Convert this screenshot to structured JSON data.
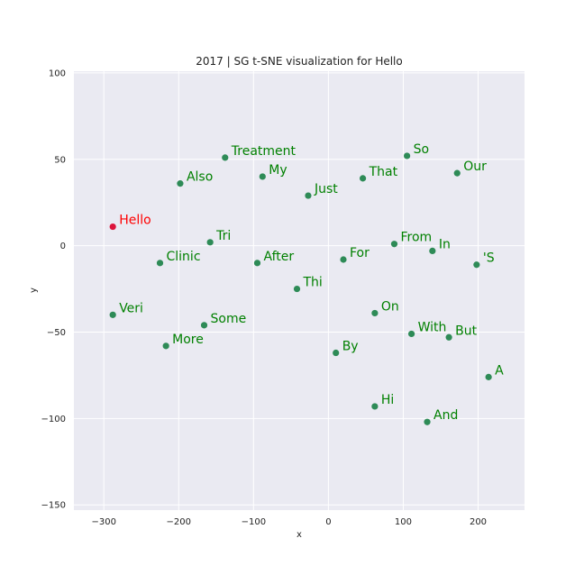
{
  "chart_data": {
    "type": "scatter",
    "title": "2017 | SG t-SNE visualization for Hello",
    "xlabel": "x",
    "ylabel": "y",
    "xlim": [
      -340,
      262
    ],
    "ylim": [
      -153,
      101
    ],
    "xticks": [
      -300,
      -200,
      -100,
      0,
      100,
      200
    ],
    "yticks": [
      -150,
      -100,
      -50,
      0,
      50,
      100
    ],
    "grid": true,
    "colors": {
      "background": "#eaeaf2",
      "grid": "#ffffff",
      "point": "#2e8b57",
      "label": "#008000",
      "highlight_point": "#dc143c",
      "highlight_label": "#ff0000"
    },
    "points": [
      {
        "label": "Hello",
        "x": -288,
        "y": 11,
        "highlight": true
      },
      {
        "label": "Treatment",
        "x": -138,
        "y": 51
      },
      {
        "label": "My",
        "x": -88,
        "y": 40
      },
      {
        "label": "So",
        "x": 105,
        "y": 52
      },
      {
        "label": "Our",
        "x": 172,
        "y": 42
      },
      {
        "label": "Also",
        "x": -198,
        "y": 36
      },
      {
        "label": "That",
        "x": 46,
        "y": 39
      },
      {
        "label": "Just",
        "x": -27,
        "y": 29
      },
      {
        "label": "Tri",
        "x": -158,
        "y": 2
      },
      {
        "label": "From",
        "x": 88,
        "y": 1
      },
      {
        "label": "In",
        "x": 139,
        "y": -3
      },
      {
        "label": "Clinic",
        "x": -225,
        "y": -10
      },
      {
        "label": "After",
        "x": -95,
        "y": -10
      },
      {
        "label": "For",
        "x": 20,
        "y": -8
      },
      {
        "label": "'S",
        "x": 198,
        "y": -11
      },
      {
        "label": "Thi",
        "x": -42,
        "y": -25
      },
      {
        "label": "Veri",
        "x": -288,
        "y": -40
      },
      {
        "label": "On",
        "x": 62,
        "y": -39
      },
      {
        "label": "Some",
        "x": -166,
        "y": -46
      },
      {
        "label": "With",
        "x": 111,
        "y": -51
      },
      {
        "label": "But",
        "x": 161,
        "y": -53
      },
      {
        "label": "More",
        "x": -217,
        "y": -58
      },
      {
        "label": "By",
        "x": 10,
        "y": -62
      },
      {
        "label": "A",
        "x": 214,
        "y": -76
      },
      {
        "label": "Hi",
        "x": 62,
        "y": -93
      },
      {
        "label": "And",
        "x": 132,
        "y": -102
      }
    ]
  }
}
